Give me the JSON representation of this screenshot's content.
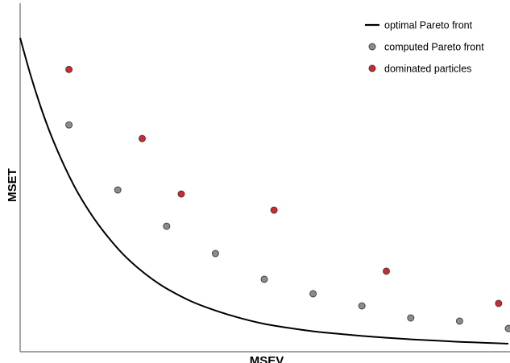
{
  "chart_data": {
    "type": "scatter",
    "title": "",
    "xlabel": "MSEV",
    "ylabel": "MSET",
    "xlim": [
      0,
      100
    ],
    "ylim": [
      0,
      100
    ],
    "grid": false,
    "ticks": false,
    "legend_position": "top-right",
    "series": [
      {
        "name": "optimal Pareto front",
        "kind": "line",
        "color": "#000000",
        "x": [
          0,
          2,
          4,
          6,
          8,
          10,
          12,
          15,
          18,
          21,
          24,
          27,
          30,
          35,
          40,
          45,
          50,
          55,
          60,
          65,
          70,
          75,
          80,
          85,
          90,
          95,
          100
        ],
        "y": [
          100,
          88.7,
          78.7,
          69.9,
          62.3,
          55.5,
          49.5,
          42,
          35.7,
          30.3,
          25.9,
          22.2,
          19.1,
          15,
          12,
          9.6,
          7.7,
          6.4,
          5.3,
          4.5,
          3.8,
          3.2,
          2.7,
          2.3,
          1.9,
          1.6,
          1.3
        ]
      },
      {
        "name": "computed Pareto front",
        "kind": "points",
        "color": "#8c8c8c",
        "x": [
          10,
          20,
          30,
          40,
          50,
          60,
          70,
          80,
          90,
          100
        ],
        "y": [
          71.9,
          50.9,
          39.2,
          30.4,
          22.1,
          17.4,
          13.5,
          9.6,
          8.6,
          6.2
        ]
      },
      {
        "name": "dominated particles",
        "kind": "points",
        "color": "#d3262e",
        "x": [
          10,
          25,
          33,
          52,
          75,
          98
        ],
        "y": [
          89.8,
          67.5,
          49.6,
          44.4,
          24.7,
          14.3
        ]
      }
    ]
  }
}
